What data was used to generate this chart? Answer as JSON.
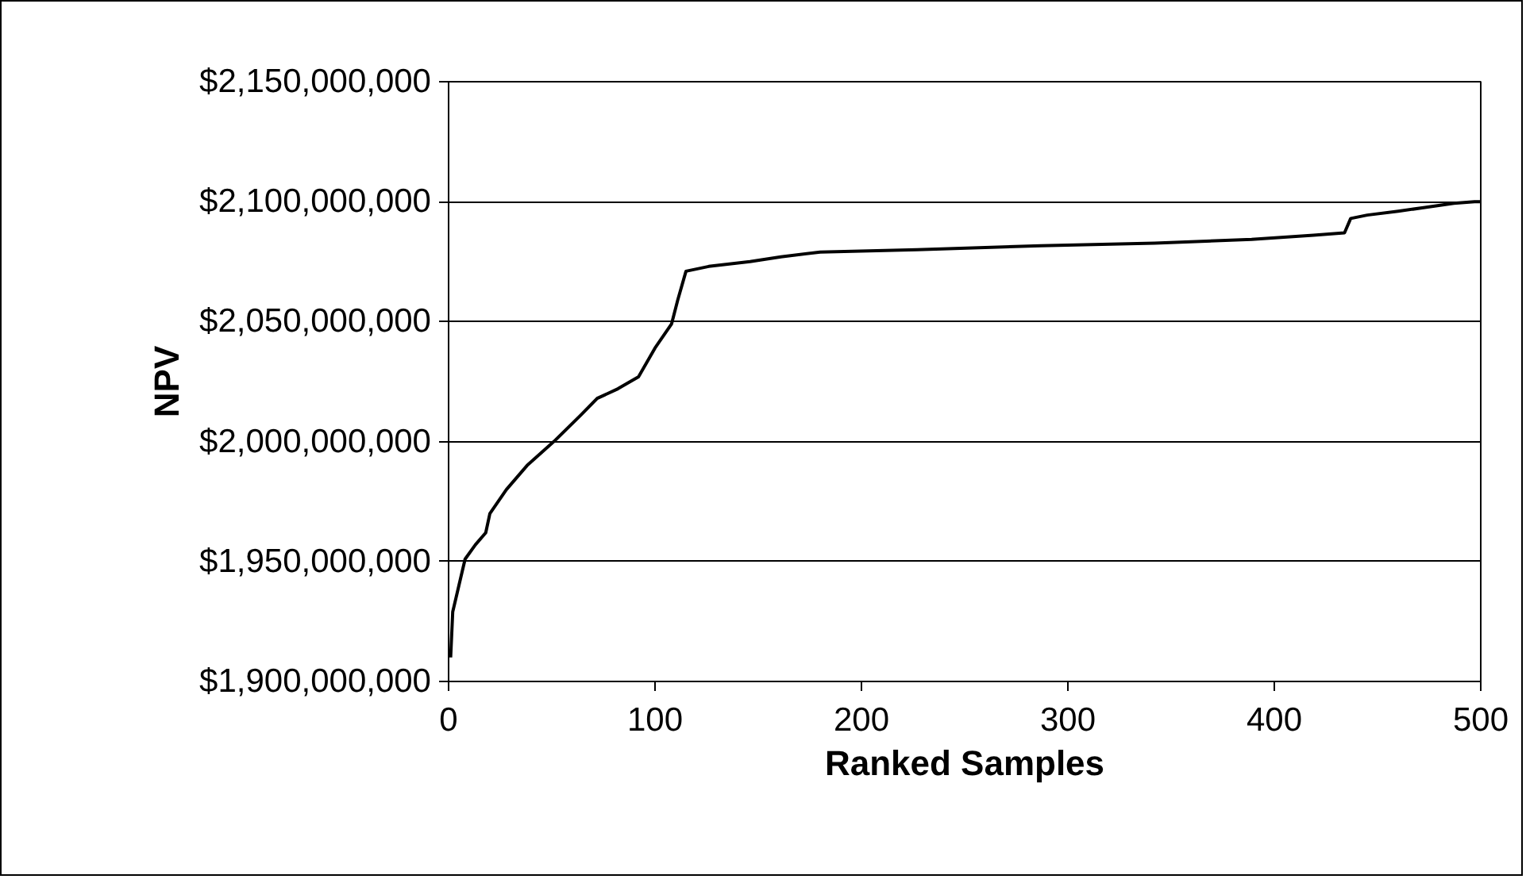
{
  "chart_data": {
    "type": "line",
    "xlabel": "Ranked Samples",
    "ylabel": "NPV",
    "x": [
      1,
      2,
      5,
      8,
      13,
      18,
      20,
      28,
      38,
      51,
      64,
      72,
      82,
      92,
      100,
      108,
      111,
      115,
      126,
      146,
      161,
      180,
      227,
      245,
      287,
      342,
      389,
      419,
      434,
      437,
      445,
      460,
      473,
      487,
      497,
      500
    ],
    "series": [
      {
        "color": "#000000",
        "values": [
          1910000000,
          1929000000,
          1940000000,
          1951000000,
          1957000000,
          1962000000,
          1970000000,
          1980000000,
          1990000000,
          2000000000,
          2011000000,
          2018000000,
          2022000000,
          2027000000,
          2039000000,
          2049000000,
          2059000000,
          2071000000,
          2073000000,
          2075000000,
          2077000000,
          2079000000,
          2080000000,
          2080500000,
          2081600000,
          2082700000,
          2084300000,
          2086000000,
          2087000000,
          2093000000,
          2094400000,
          2096000000,
          2097600000,
          2099300000,
          2100000000,
          2100000000
        ]
      }
    ],
    "xlim": [
      0,
      500
    ],
    "xticks": [
      0,
      100,
      200,
      300,
      400,
      500
    ],
    "ylim": [
      1900000000,
      2150000000
    ],
    "yticks": [
      {
        "value": 1900000000,
        "label": "$1,900,000,000"
      },
      {
        "value": 1950000000,
        "label": "$1,950,000,000"
      },
      {
        "value": 2000000000,
        "label": "$2,000,000,000"
      },
      {
        "value": 2050000000,
        "label": "$2,050,000,000"
      },
      {
        "value": 2100000000,
        "label": "$2,100,000,000"
      },
      {
        "value": 2150000000,
        "label": "$2,150,000,000"
      }
    ],
    "grid": "y",
    "marker": "none",
    "line_style": "solid"
  }
}
